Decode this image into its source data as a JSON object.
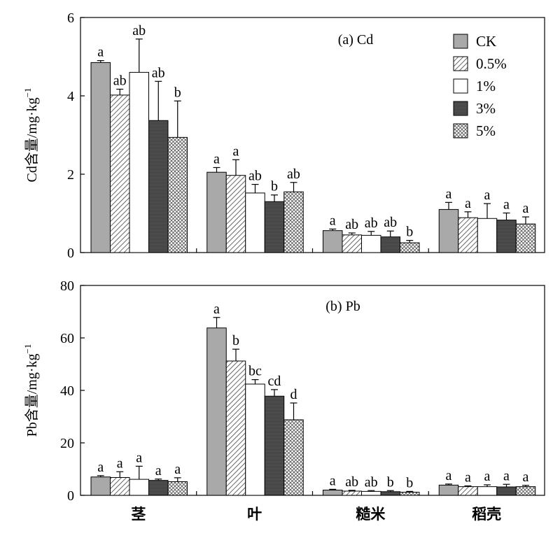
{
  "chart_data": [
    {
      "type": "bar",
      "title": "(a) Cd",
      "ylabel_main": "Cd含量/mg·kg",
      "ylabel_sup": "−1",
      "ylim": [
        0,
        6
      ],
      "yticks": [
        "0",
        "2",
        "4",
        "6"
      ],
      "categories": [
        "茎",
        "叶",
        "糙米",
        "稻壳"
      ],
      "series": [
        {
          "name": "CK",
          "values": [
            4.85,
            2.05,
            0.56,
            1.1
          ],
          "err": [
            0.05,
            0.12,
            0.04,
            0.18
          ],
          "labels": [
            "a",
            "a",
            "a",
            "a"
          ]
        },
        {
          "name": "0.5%",
          "values": [
            4.02,
            1.97,
            0.45,
            0.89
          ],
          "err": [
            0.15,
            0.4,
            0.05,
            0.15
          ],
          "labels": [
            "ab",
            "a",
            "ab",
            "a"
          ]
        },
        {
          "name": "1%",
          "values": [
            4.6,
            1.52,
            0.44,
            0.87
          ],
          "err": [
            0.85,
            0.22,
            0.1,
            0.38
          ],
          "labels": [
            "ab",
            "ab",
            "ab",
            "a"
          ]
        },
        {
          "name": "3%",
          "values": [
            3.37,
            1.3,
            0.4,
            0.83
          ],
          "err": [
            1.0,
            0.17,
            0.15,
            0.18
          ],
          "labels": [
            "ab",
            "b",
            "ab",
            "a"
          ]
        },
        {
          "name": "5%",
          "values": [
            2.94,
            1.55,
            0.25,
            0.73
          ],
          "err": [
            0.93,
            0.24,
            0.06,
            0.18
          ],
          "labels": [
            "b",
            "ab",
            "b",
            "a"
          ]
        }
      ]
    },
    {
      "type": "bar",
      "title": "(b) Pb",
      "ylabel_main": "Pb含量/mg·kg",
      "ylabel_sup": "−1",
      "ylim": [
        0,
        80
      ],
      "yticks": [
        "0",
        "20",
        "40",
        "60",
        "80"
      ],
      "categories": [
        "茎",
        "叶",
        "糙米",
        "稻壳"
      ],
      "series": [
        {
          "name": "CK",
          "values": [
            7.0,
            63.8,
            2.0,
            3.9
          ],
          "err": [
            0.5,
            4.0,
            0.3,
            0.4
          ],
          "labels": [
            "a",
            "a",
            "a",
            "a"
          ]
        },
        {
          "name": "0.5%",
          "values": [
            6.8,
            51.2,
            1.6,
            3.3
          ],
          "err": [
            2.2,
            4.5,
            0.3,
            0.3
          ],
          "labels": [
            "a",
            "b",
            "ab",
            "a"
          ]
        },
        {
          "name": "1%",
          "values": [
            6.1,
            42.4,
            1.5,
            3.3
          ],
          "err": [
            5.0,
            1.7,
            0.3,
            0.7
          ],
          "labels": [
            "a",
            "bc",
            "ab",
            "a"
          ]
        },
        {
          "name": "3%",
          "values": [
            5.7,
            37.8,
            1.4,
            3.2
          ],
          "err": [
            0.5,
            2.5,
            0.4,
            1.0
          ],
          "labels": [
            "a",
            "cd",
            "b",
            "a"
          ]
        },
        {
          "name": "5%",
          "values": [
            5.2,
            28.8,
            1.2,
            3.3
          ],
          "err": [
            1.5,
            6.4,
            0.3,
            0.5
          ],
          "labels": [
            "a",
            "d",
            "b",
            "a"
          ]
        }
      ]
    }
  ],
  "legend": {
    "placement": "top-right",
    "entries": [
      "CK",
      "0.5%",
      "1%",
      "3%",
      "5%"
    ]
  },
  "styles": {
    "fills": [
      "#a9a9a9",
      "hatch-diagonal",
      "#ffffff",
      "#555555",
      "crosshatch"
    ],
    "bar_fill_ck": "#a9a9a9",
    "bar_fill_3pct": "#555555"
  }
}
